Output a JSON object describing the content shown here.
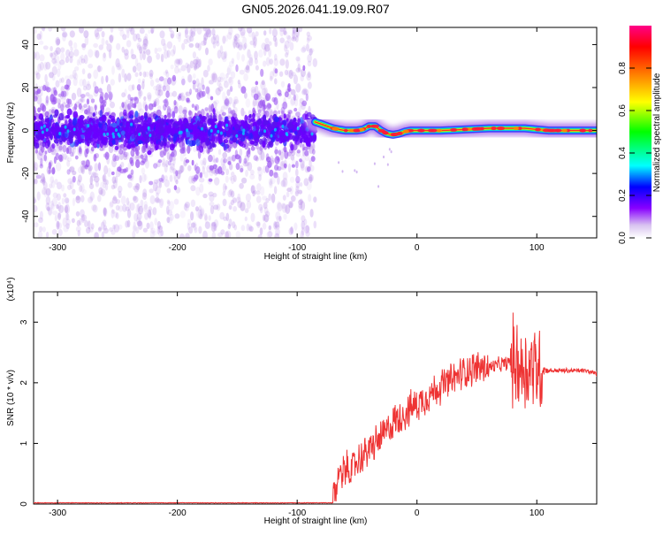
{
  "page": {
    "title": "GN05.2026.041.19.09.R07"
  },
  "chart_data": [
    {
      "type": "heatmap",
      "xlabel": "Height of straight line (km)",
      "ylabel": "Frequency (Hz)",
      "xlim": [
        -320,
        150
      ],
      "ylim": [
        -50,
        48
      ],
      "xticks": [
        -300,
        -200,
        -100,
        0,
        100
      ],
      "yticks": [
        -40,
        -20,
        0,
        20,
        40
      ],
      "noise_region_x": [
        -320,
        -85
      ],
      "signal_track": {
        "x": [
          -85,
          -80,
          -75,
          -70,
          -65,
          -60,
          -55,
          -50,
          -45,
          -40,
          -35,
          -30,
          -25,
          -20,
          -15,
          -10,
          -5,
          0,
          20,
          40,
          60,
          70,
          80,
          90,
          100,
          110,
          130,
          150
        ],
        "freq": [
          4,
          3,
          2,
          1,
          0.5,
          0,
          0,
          0,
          0.5,
          2,
          2,
          0,
          -1.5,
          -2,
          -1.5,
          -0.5,
          0,
          0,
          0,
          0.5,
          1,
          1,
          1,
          1,
          0.5,
          0,
          0,
          0
        ]
      },
      "colorbar": {
        "label": "Normalized spectral amplitude",
        "range": [
          0,
          1
        ],
        "ticks": [
          0,
          0.2,
          0.4,
          0.6,
          0.8
        ],
        "tick_labels": [
          "0.0",
          "0.2",
          "0.4",
          "0.6",
          "0.8"
        ],
        "colors": [
          "#ffffff",
          "#d8c2f0",
          "#8800ff",
          "#0000ff",
          "#00ffff",
          "#00ff00",
          "#ffff00",
          "#ff8800",
          "#ff0000",
          "#ff0088"
        ]
      }
    },
    {
      "type": "line",
      "xlabel": "Height of straight line (km)",
      "ylabel": "SNR (10 * v/v)",
      "multiplier_label": "(x10⁴)",
      "xlim": [
        -320,
        150
      ],
      "ylim": [
        0,
        3.5
      ],
      "xticks": [
        -300,
        -200,
        -100,
        0,
        100
      ],
      "yticks": [
        0,
        1,
        2,
        3
      ],
      "line_color": "#ee3333",
      "series": [
        {
          "x": [
            -320,
            -200,
            -100,
            -70,
            -65,
            -60,
            -55,
            -50,
            -45,
            -40,
            -35,
            -30,
            -25,
            -20,
            -10,
            0,
            10,
            20,
            30,
            40,
            50,
            60,
            70,
            80,
            85,
            90,
            95,
            100,
            110,
            120,
            130,
            140,
            150
          ],
          "y": [
            0,
            0,
            0,
            0.05,
            0.5,
            0.6,
            0.55,
            0.7,
            0.8,
            0.9,
            1.0,
            1.1,
            1.2,
            1.35,
            1.5,
            1.65,
            1.8,
            1.95,
            2.05,
            2.2,
            2.25,
            2.25,
            2.3,
            2.35,
            2.3,
            2.2,
            2.3,
            2.25,
            2.2,
            2.2,
            2.2,
            2.2,
            2.15
          ]
        }
      ]
    }
  ]
}
